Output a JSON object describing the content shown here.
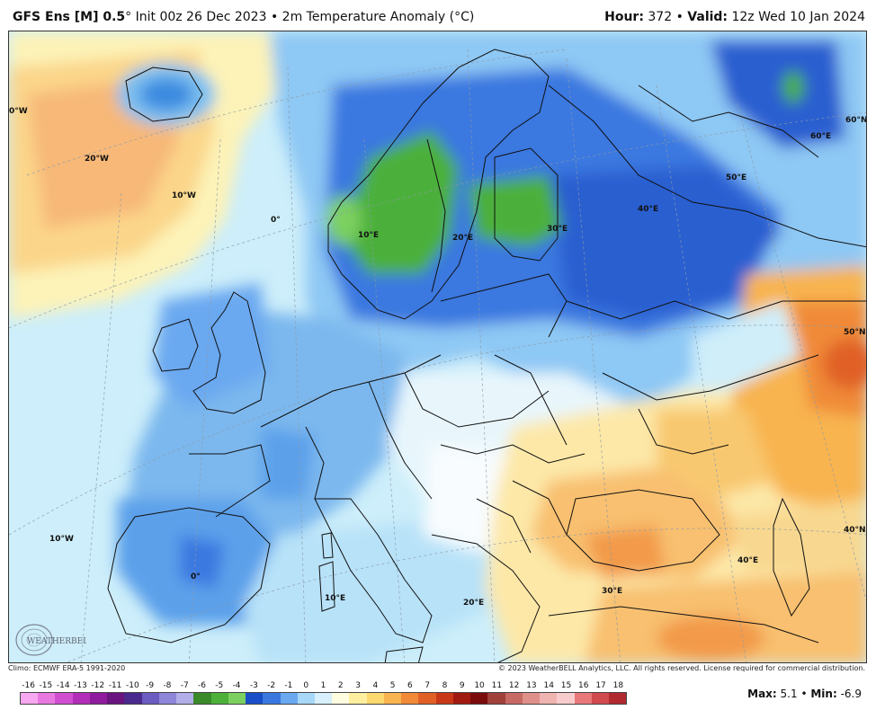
{
  "header": {
    "model": "GFS Ens [M] 0.5",
    "degree": "°",
    "init_text": " Init 00z 26 Dec 2023",
    "bullet": " • ",
    "field": "2m Temperature Anomaly (°C)",
    "hour_label": "Hour:",
    "hour_value": "372",
    "valid_label": "Valid:",
    "valid_value": "12z Wed 10 Jan 2024"
  },
  "map_labels": {
    "lon_0w_top": "0°W",
    "lon_20w": "20°W",
    "lon_10w": "10°W",
    "lon_0": "0°",
    "lon_10e": "10°E",
    "lon_20e": "20°E",
    "lon_30e": "30°E",
    "lon_40e": "40°E",
    "lon_50e": "50°E",
    "lon_60e": "60°E",
    "lat_60n": "60°N",
    "lat_50n": "50°N",
    "lat_40n": "40°N",
    "lon_10w_lower": "10°W",
    "lon_0_lower": "0°",
    "lon_10e_lower": "10°E",
    "lon_20e_lower": "20°E",
    "lon_30e_lower": "30°E",
    "lon_40e_lower": "40°E"
  },
  "logo_text": "WEATHERBELL",
  "footer": {
    "climo": "Climo: ECMWF ERA-5 1991-2020",
    "copyright": "© 2023 WeatherBELL Analytics, LLC. All rights reserved. License required for commercial distribution."
  },
  "colorbar": {
    "labels": [
      "-16",
      "-15",
      "-14",
      "-13",
      "-12",
      "-11",
      "-10",
      "-9",
      "-8",
      "-7",
      "-6",
      "-5",
      "-4",
      "-3",
      "-2",
      "-1",
      "0",
      "1",
      "2",
      "3",
      "4",
      "5",
      "6",
      "7",
      "8",
      "9",
      "10",
      "11",
      "12",
      "13",
      "14",
      "15",
      "16",
      "17",
      "18"
    ],
    "colors": [
      "#f7a8f0",
      "#e879e0",
      "#d04ed0",
      "#b22eb8",
      "#8e1c9c",
      "#6a1480",
      "#4a2a8c",
      "#6a5cc0",
      "#8e86d8",
      "#b2aee8",
      "#3a8a2a",
      "#4cb03a",
      "#7cd060",
      "#1a4ec8",
      "#3a78e0",
      "#6aa8f0",
      "#a8d8f8",
      "#d8f0fb",
      "#fffde0",
      "#fdeea0",
      "#fbd870",
      "#f8b450",
      "#f08a38",
      "#e06028",
      "#c83818",
      "#a01a10",
      "#7a0c0c",
      "#a0403a",
      "#c86a64",
      "#e0908a",
      "#f0b4b0",
      "#f8cccc",
      "#e8787a",
      "#d04a4e",
      "#b02a30"
    ]
  },
  "stats": {
    "max_label": "Max:",
    "max_value": "5.1",
    "sep": " • ",
    "min_label": "Min:",
    "min_value": "-6.9"
  }
}
